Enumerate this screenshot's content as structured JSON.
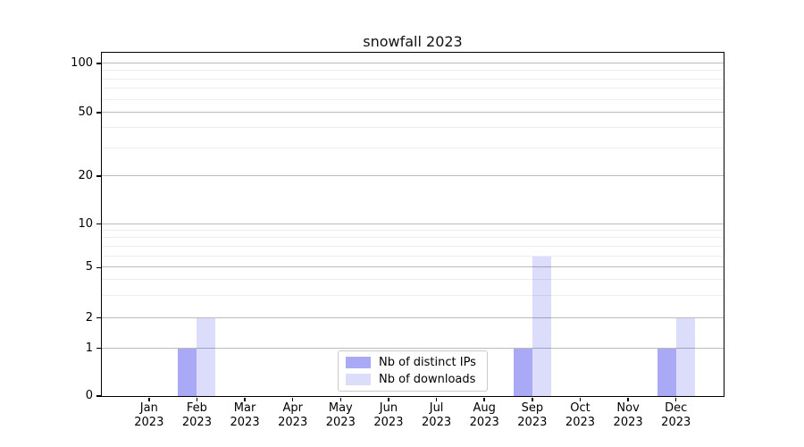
{
  "title": "snowfall 2023",
  "chart_data": {
    "type": "bar",
    "title": "snowfall 2023",
    "categories": [
      "Jan",
      "Feb",
      "Mar",
      "Apr",
      "May",
      "Jun",
      "Jul",
      "Aug",
      "Sep",
      "Oct",
      "Nov",
      "Dec"
    ],
    "category_year": "2023",
    "series": [
      {
        "name": "Nb of distinct IPs",
        "color": "#a9aaf7",
        "base_color": "#0a0ae6",
        "alpha": 0.35,
        "values": [
          0,
          1,
          0,
          0,
          0,
          0,
          0,
          0,
          1,
          0,
          0,
          1
        ]
      },
      {
        "name": "Nb of downloads",
        "color": "#dcdcfa",
        "base_color": "#0a0ae6",
        "alpha": 0.14,
        "values": [
          0,
          2,
          0,
          0,
          0,
          0,
          0,
          0,
          6,
          0,
          0,
          2
        ]
      }
    ],
    "y_axis": {
      "scale": "symlog",
      "major_ticks": [
        0,
        1,
        2,
        5,
        10,
        20,
        50,
        100
      ],
      "minor_ticks": [
        3,
        4,
        6,
        7,
        8,
        9,
        30,
        40,
        60,
        70,
        80,
        90
      ],
      "ylim": [
        0,
        116
      ]
    },
    "grid": true,
    "legend_position": "lower center",
    "background": "#ffffff"
  }
}
